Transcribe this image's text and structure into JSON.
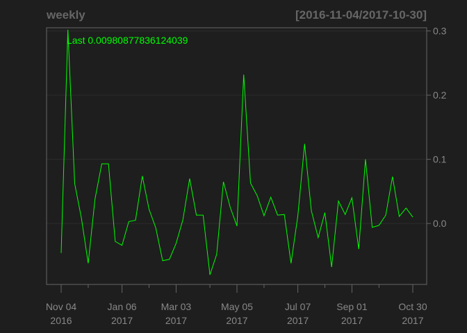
{
  "chart_data": {
    "type": "line",
    "title": "weekly",
    "range_label": "[2016-11-04/2017-10-30]",
    "last_label": "Last 0.00980877836124039",
    "series_color": "#00ff00",
    "background_color": "#1e1e1e",
    "axis_color": "#666666",
    "grid": true,
    "ylim": [
      -0.095,
      0.305
    ],
    "yticks": [
      0.0,
      0.1,
      0.2,
      0.3
    ],
    "ytick_labels": [
      "0.0",
      "0.1",
      "0.2",
      "0.3"
    ],
    "xticks": [
      {
        "index": 0,
        "line1": "Nov 04",
        "line2": "2016"
      },
      {
        "index": 9,
        "line1": "Jan 06",
        "line2": "2017"
      },
      {
        "index": 17,
        "line1": "Mar 03",
        "line2": "2017"
      },
      {
        "index": 26,
        "line1": "May 05",
        "line2": "2017"
      },
      {
        "index": 35,
        "line1": "Jul 07",
        "line2": "2017"
      },
      {
        "index": 43,
        "line1": "Sep 01",
        "line2": "2017"
      },
      {
        "index": 52,
        "line1": "Oct 30",
        "line2": "2017"
      }
    ],
    "minor_ticks": [
      4,
      13,
      22,
      30,
      39,
      47
    ],
    "values": [
      -0.046,
      0.302,
      0.062,
      0.008,
      -0.062,
      0.038,
      0.093,
      0.093,
      -0.028,
      -0.034,
      0.003,
      0.005,
      0.074,
      0.022,
      -0.007,
      -0.058,
      -0.056,
      -0.031,
      0.006,
      0.07,
      0.013,
      0.013,
      -0.08,
      -0.048,
      0.065,
      0.025,
      -0.004,
      0.232,
      0.063,
      0.043,
      0.012,
      0.041,
      0.013,
      0.014,
      -0.062,
      0.012,
      0.124,
      0.02,
      -0.022,
      0.017,
      -0.068,
      0.035,
      0.014,
      0.04,
      -0.04,
      0.1,
      -0.006,
      -0.003,
      0.013,
      0.073,
      0.011,
      0.024,
      0.01
    ]
  }
}
